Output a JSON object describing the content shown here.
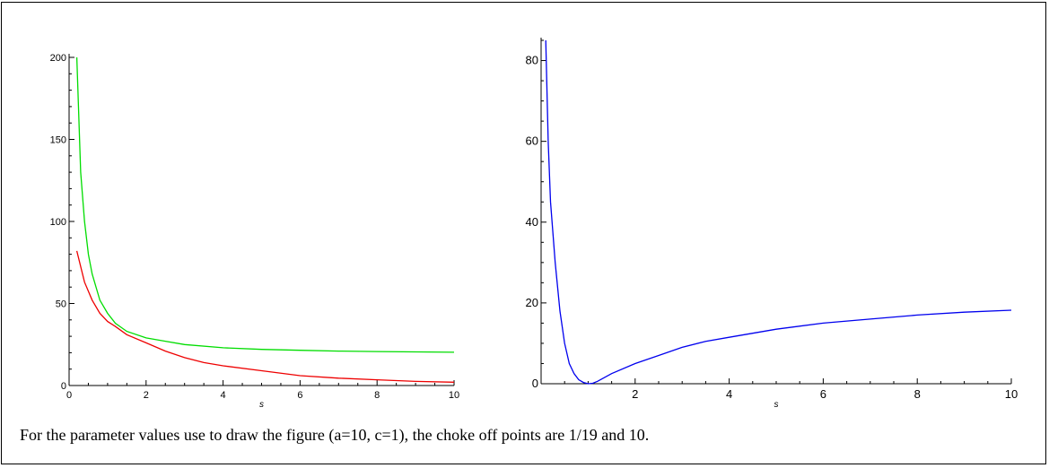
{
  "caption": "For the parameter values use to draw the figure (a=10, c=1), the choke off points are 1/19 and 10.",
  "chart_data": [
    {
      "type": "line",
      "xlabel": "s",
      "ylabel": "",
      "xlim": [
        0,
        10
      ],
      "ylim": [
        0,
        200
      ],
      "x_ticks": [
        0,
        2,
        4,
        6,
        8,
        10
      ],
      "y_ticks": [
        0,
        50,
        100,
        150,
        200
      ],
      "series": [
        {
          "color": "#00dd00",
          "x": [
            0.2,
            0.3,
            0.4,
            0.5,
            0.6,
            0.8,
            1.0,
            1.2,
            1.5,
            2,
            2.5,
            3,
            4,
            5,
            6,
            7,
            8,
            9,
            10
          ],
          "y": [
            200,
            130,
            100,
            80,
            68,
            52,
            44,
            38,
            33,
            29,
            27,
            25,
            23,
            22,
            21.5,
            21,
            20.7,
            20.5,
            20.3
          ]
        },
        {
          "color": "#ee0000",
          "x": [
            0.2,
            0.4,
            0.6,
            0.8,
            1.0,
            1.2,
            1.5,
            2,
            2.5,
            3,
            3.5,
            4,
            5,
            6,
            7,
            8,
            9,
            10
          ],
          "y": [
            82,
            63,
            52,
            44,
            39,
            36,
            31,
            26,
            21,
            17,
            14,
            12,
            9,
            6,
            4.5,
            3.5,
            2.5,
            2
          ]
        }
      ]
    },
    {
      "type": "line",
      "xlabel": "s",
      "ylabel": "",
      "xlim": [
        0,
        10
      ],
      "ylim": [
        0,
        85
      ],
      "x_ticks": [
        2,
        4,
        6,
        8,
        10
      ],
      "y_ticks": [
        0,
        20,
        40,
        60,
        80
      ],
      "series": [
        {
          "color": "#0000ee",
          "x": [
            0.1,
            0.15,
            0.2,
            0.3,
            0.4,
            0.5,
            0.6,
            0.7,
            0.8,
            0.9,
            1.0,
            1.1,
            1.2,
            1.5,
            2,
            2.5,
            3,
            3.5,
            4,
            5,
            6,
            7,
            8,
            9,
            10
          ],
          "y": [
            85,
            60,
            45,
            30,
            18,
            10,
            5,
            2.5,
            1,
            0.3,
            0,
            0.1,
            0.6,
            2.5,
            5,
            7,
            9,
            10.5,
            11.5,
            13.5,
            15,
            16,
            17,
            17.7,
            18.2
          ]
        }
      ]
    }
  ]
}
